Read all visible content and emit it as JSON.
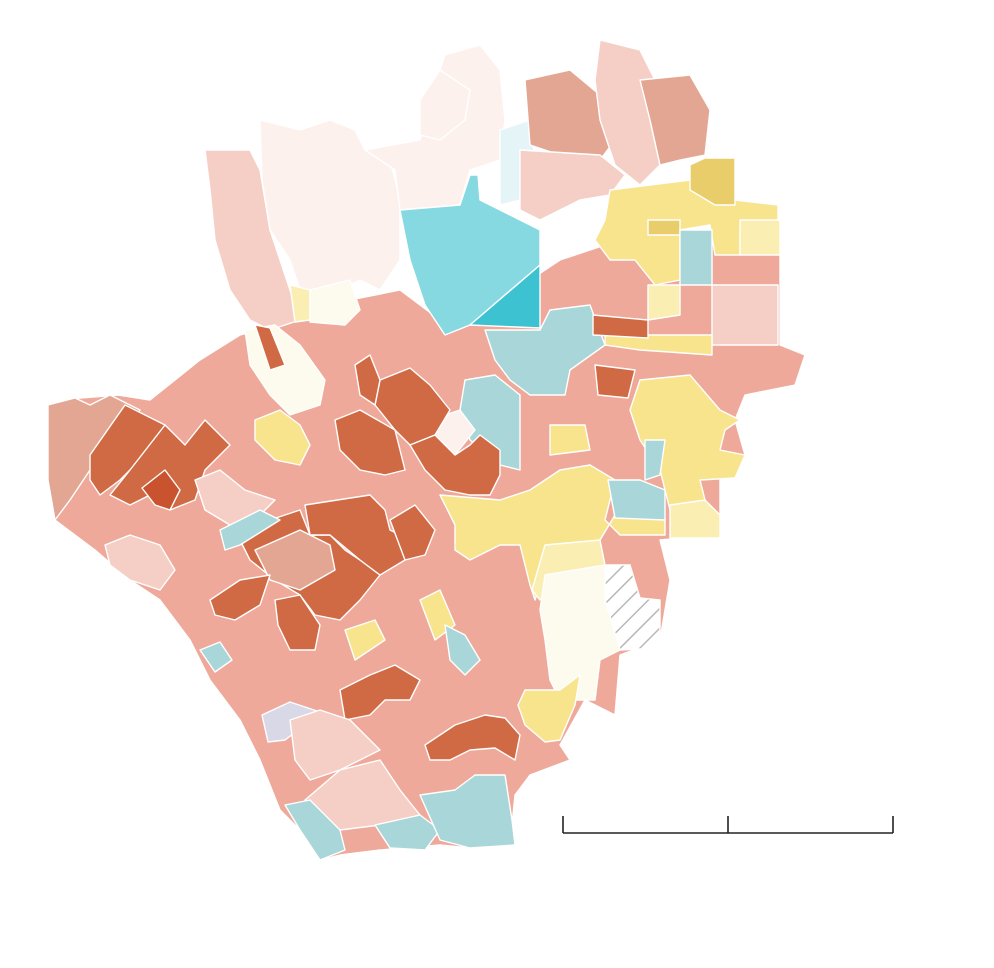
{
  "map": {
    "palette": {
      "deep_red": "#c9532f",
      "dark_orange": "#d06a45",
      "mid_orange": "#d87a5a",
      "salmon": "#eea99b",
      "muted_salmon": "#e3a693",
      "light_pink": "#f5cfc6",
      "pale_pink": "#fdf1ee",
      "cream": "#fdfaee",
      "pale_yellow": "#fbeeb3",
      "yellow": "#f7e48c",
      "gold": "#e8cd6a",
      "pale_teal": "#e4f4f7",
      "light_teal": "#a9d6d9",
      "cyan": "#86d9e0",
      "bright_cyan": "#3cc2d0",
      "lavender": "#d8d8e6",
      "no_data_hatch": "#b8b8b8"
    },
    "districts": [
      {
        "name": "district-northwest-coast-west",
        "color": "muted_salmon"
      },
      {
        "name": "district-northwest-hills",
        "color": "light_pink"
      },
      {
        "name": "district-north-valley-west",
        "color": "pale_pink"
      },
      {
        "name": "district-north-valley-center",
        "color": "pale_pink"
      },
      {
        "name": "district-north-peak",
        "color": "pale_pink"
      },
      {
        "name": "district-north-pale-teal",
        "color": "pale_teal"
      },
      {
        "name": "district-northeast-mountain",
        "color": "muted_salmon"
      },
      {
        "name": "district-northeast-ridge",
        "color": "light_pink"
      },
      {
        "name": "district-northeast-far",
        "color": "muted_salmon"
      },
      {
        "name": "district-north-cyan",
        "color": "cyan"
      },
      {
        "name": "district-north-bright-cyan",
        "color": "bright_cyan"
      },
      {
        "name": "district-central-teal",
        "color": "light_teal"
      },
      {
        "name": "district-east-yellow-cluster",
        "color": "yellow"
      },
      {
        "name": "district-east-gold",
        "color": "gold"
      },
      {
        "name": "district-east-pale-yellow",
        "color": "pale_yellow"
      },
      {
        "name": "district-east-teal",
        "color": "light_teal"
      },
      {
        "name": "district-west-dark-block",
        "color": "dark_orange"
      },
      {
        "name": "district-west-deep-red",
        "color": "deep_red"
      },
      {
        "name": "district-central-dark-block",
        "color": "dark_orange"
      },
      {
        "name": "district-south-central-dark",
        "color": "dark_orange"
      },
      {
        "name": "district-south-dark-block",
        "color": "dark_orange"
      },
      {
        "name": "district-southeast-dark",
        "color": "dark_orange"
      },
      {
        "name": "district-central-yellow-belt",
        "color": "yellow"
      },
      {
        "name": "district-southeast-cream",
        "color": "cream"
      },
      {
        "name": "district-south-yellow",
        "color": "yellow"
      },
      {
        "name": "district-west-yellow",
        "color": "yellow"
      },
      {
        "name": "district-southwest-coast",
        "color": "light_pink"
      },
      {
        "name": "district-south-coast-teal",
        "color": "light_teal"
      },
      {
        "name": "district-west-white",
        "color": "cream"
      },
      {
        "name": "district-lavender-harbor",
        "color": "lavender"
      },
      {
        "name": "district-no-data-hatched",
        "color": "no_data_hatch"
      }
    ]
  },
  "scale_bar": {
    "segments": 2,
    "labels": []
  }
}
